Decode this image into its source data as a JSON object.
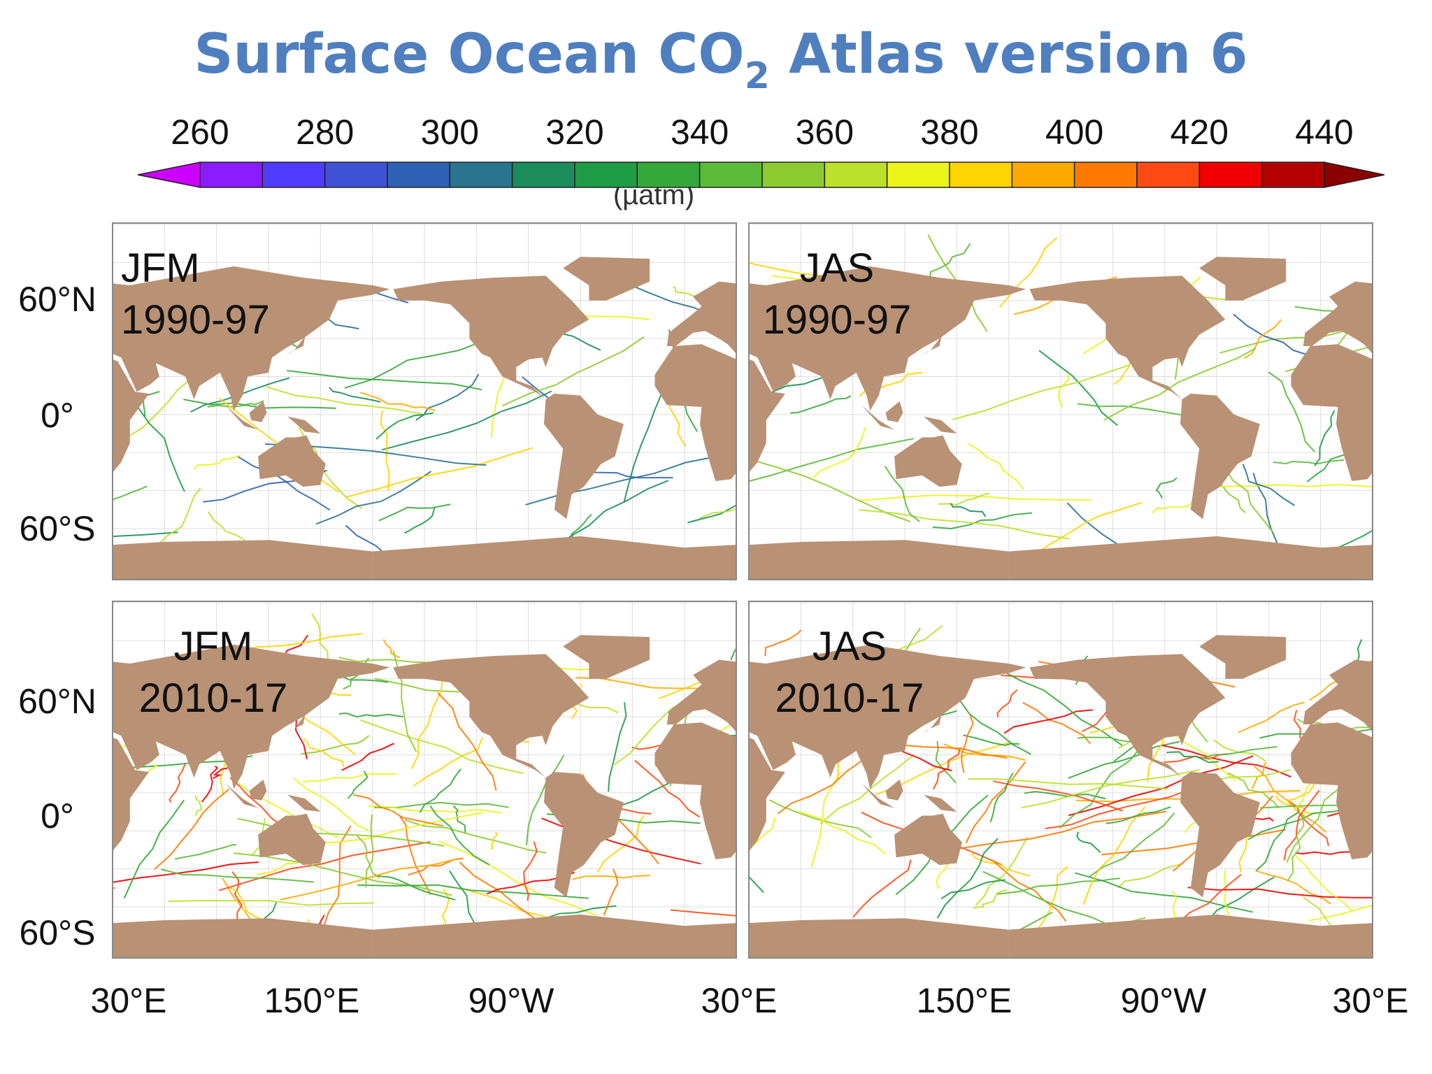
{
  "title": {
    "text": "Surface Ocean CO",
    "subscript": "2",
    "text_after": " Atlas version 6"
  },
  "colorbar": {
    "ticks": [
      260,
      280,
      300,
      320,
      340,
      360,
      380,
      400,
      420,
      440
    ],
    "range": [
      260,
      440
    ],
    "label": "(µatm)",
    "under_color": "#cc00ff",
    "over_color": "#8b0000",
    "colors": [
      "#8a1cff",
      "#4f3cff",
      "#3f51d6",
      "#2f62b4",
      "#2a7490",
      "#1b8c5c",
      "#1f9c46",
      "#36a83a",
      "#5cba3a",
      "#8ccc30",
      "#bde02a",
      "#ecf51a",
      "#ffd400",
      "#ffaa00",
      "#ff7a00",
      "#ff4a14",
      "#f00000",
      "#b40000"
    ]
  },
  "panels": [
    {
      "season": "JFM",
      "years": "1990-97"
    },
    {
      "season": "JAS",
      "years": "1990-97"
    },
    {
      "season": "JFM",
      "years": "2010-17"
    },
    {
      "season": "JAS",
      "years": "2010-17"
    }
  ],
  "lat_labels": [
    "60°N",
    "0°",
    "60°S"
  ],
  "lon_labels": [
    "30°E",
    "150°E",
    "90°W",
    "30°E"
  ],
  "land_color": "#b99174"
}
